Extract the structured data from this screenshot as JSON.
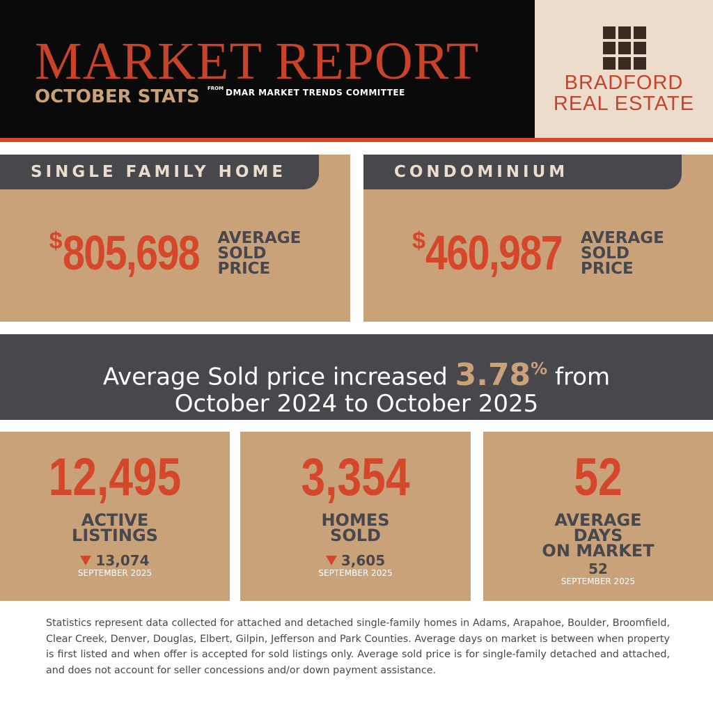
{
  "header": {
    "title": "MARKET REPORT",
    "subtitle": "OCTOBER STATS",
    "from": "FROM",
    "source": "DMAR MARKET TRENDS COMMITTEE"
  },
  "logo": {
    "line1": "BRADFORD",
    "line2": "REAL ESTATE"
  },
  "prices": [
    {
      "heading": "SINGLE FAMILY HOME",
      "currency": "$",
      "amount": "805,698",
      "label": [
        "AVERAGE",
        "SOLD",
        "PRICE"
      ]
    },
    {
      "heading": "CONDOMINIUM",
      "currency": "$",
      "amount": "460,987",
      "label": [
        "AVERAGE",
        "SOLD",
        "PRICE"
      ]
    }
  ],
  "banner": {
    "lead": "Average Sold price increased",
    "change": "3.78",
    "unit": "%",
    "tail": "from",
    "line2": "October 2024 to October 2025"
  },
  "stats": [
    {
      "value": "12,495",
      "label": [
        "ACTIVE",
        "LISTINGS"
      ],
      "previous": "13,074",
      "period": "SEPTEMBER 2025"
    },
    {
      "value": "3,354",
      "label": [
        "HOMES",
        "SOLD"
      ],
      "previous": "3,605",
      "period": "SEPTEMBER 2025"
    },
    {
      "value": "52",
      "label": [
        "AVERAGE",
        "DAYS",
        "ON MARKET"
      ],
      "previous": "52",
      "period": "SEPTEMBER 2025"
    }
  ],
  "footnote": "Statistics represent data collected for attached and detached single-family homes in Adams, Arapahoe, Boulder, Broomfield, Clear Creek, Denver, Douglas, Elbert, Gilpin, Jefferson and Park Counties. Average days on market is between when property is first listed and when offer is accepted for sold listings only. Average sold price is for single-family detached and attached, and does not account for seller concessions and/or down payment assistance."
}
